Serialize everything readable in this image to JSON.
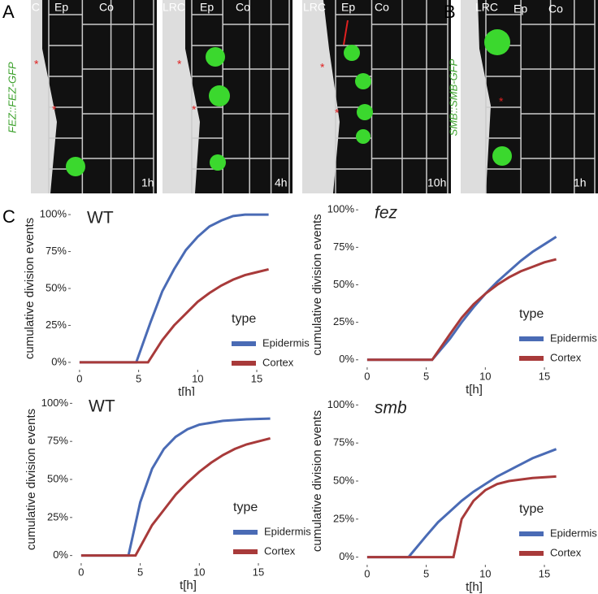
{
  "figure": {
    "panel_labels": [
      "A",
      "B",
      "C"
    ],
    "images": [
      {
        "headers": [
          "LRC",
          "Ep",
          "Co"
        ],
        "time": "1h",
        "markers": [
          "*",
          "*"
        ]
      },
      {
        "headers": [
          "LRC",
          "Ep",
          "Co"
        ],
        "time": "4h",
        "markers": [
          "*",
          "*"
        ]
      },
      {
        "headers": [
          "LRC",
          "Ep",
          "Co"
        ],
        "time": "10h",
        "markers": [
          "*",
          "*"
        ]
      },
      {
        "headers": [
          "LRC",
          "Ep",
          "Co"
        ],
        "time": "1h",
        "markers": [
          "*"
        ]
      }
    ],
    "gene_labels": [
      "FEZ::FEZ-GFP",
      "SMB::SMB-GFP"
    ]
  },
  "chart_data": [
    {
      "type": "line",
      "title": "WT",
      "title_style": "normal",
      "x_label": "t[h]",
      "y_label": "cumulative division events",
      "legend_title": "type",
      "xlim": [
        -0.75,
        18.85
      ],
      "ylim": [
        -5,
        105
      ],
      "xticks": [
        0,
        5,
        10,
        15
      ],
      "yticks": [
        {
          "value": 0,
          "label": "0%"
        },
        {
          "value": 25,
          "label": "25%"
        },
        {
          "value": 50,
          "label": "50%"
        },
        {
          "value": 75,
          "label": "75%"
        },
        {
          "value": 100,
          "label": "100%"
        }
      ],
      "series": [
        {
          "name": "Epidermis",
          "color": "#4a6bb5",
          "x": [
            0,
            4.8,
            6,
            7,
            8,
            9,
            10,
            11,
            12,
            13,
            14,
            16
          ],
          "values": [
            0,
            0,
            27,
            48,
            63,
            76,
            85,
            92,
            96,
            99,
            100,
            100
          ]
        },
        {
          "name": "Cortex",
          "color": "#a83a3a",
          "x": [
            0,
            5.8,
            7,
            8,
            9,
            10,
            11,
            12,
            13,
            14,
            15,
            16
          ],
          "values": [
            0,
            0,
            15,
            25,
            33,
            41,
            47,
            52,
            56,
            59,
            61,
            63
          ]
        }
      ]
    },
    {
      "type": "line",
      "title": "fez",
      "title_style": "italic",
      "x_label": "t[h]",
      "y_label": "cumulative division events",
      "legend_title": "type",
      "xlim": [
        -0.75,
        18.85
      ],
      "ylim": [
        -5,
        105
      ],
      "xticks": [
        0,
        5,
        10,
        15
      ],
      "yticks": [
        {
          "value": 0,
          "label": "0%"
        },
        {
          "value": 25,
          "label": "25%"
        },
        {
          "value": 50,
          "label": "50%"
        },
        {
          "value": 75,
          "label": "75%"
        },
        {
          "value": 100,
          "label": "100%"
        }
      ],
      "series": [
        {
          "name": "Epidermis",
          "color": "#4a6bb5",
          "x": [
            0,
            5.5,
            7,
            8,
            9,
            10,
            11,
            12,
            13,
            14,
            15,
            16
          ],
          "values": [
            0,
            0,
            14,
            25,
            35,
            44,
            52,
            59,
            66,
            72,
            77,
            82
          ]
        },
        {
          "name": "Cortex",
          "color": "#a83a3a",
          "x": [
            0,
            5.5,
            7,
            8,
            9,
            10,
            11,
            12,
            13,
            14,
            15,
            16
          ],
          "values": [
            0,
            0,
            17,
            28,
            37,
            44,
            50,
            55,
            59,
            62,
            65,
            67
          ]
        }
      ]
    },
    {
      "type": "line",
      "title": "WT",
      "title_style": "normal",
      "x_label": "t[h]",
      "y_label": "cumulative division events",
      "legend_title": "type",
      "xlim": [
        -0.75,
        18.85
      ],
      "ylim": [
        -5,
        105
      ],
      "xticks": [
        0,
        5,
        10,
        15
      ],
      "yticks": [
        {
          "value": 0,
          "label": "0%"
        },
        {
          "value": 25,
          "label": "25%"
        },
        {
          "value": 50,
          "label": "50%"
        },
        {
          "value": 75,
          "label": "75%"
        },
        {
          "value": 100,
          "label": "100%"
        }
      ],
      "series": [
        {
          "name": "Epidermis",
          "color": "#4a6bb5",
          "x": [
            0,
            4,
            5,
            6,
            7,
            8,
            9,
            10,
            12,
            14,
            16
          ],
          "values": [
            0,
            0,
            35,
            57,
            70,
            78,
            83,
            86,
            88.5,
            89.5,
            90
          ]
        },
        {
          "name": "Cortex",
          "color": "#a83a3a",
          "x": [
            0,
            4.6,
            6,
            7,
            8,
            9,
            10,
            11,
            12,
            13,
            14,
            15,
            16
          ],
          "values": [
            0,
            0,
            20,
            30,
            40,
            48,
            55,
            61,
            66,
            70,
            73,
            75,
            77
          ]
        }
      ]
    },
    {
      "type": "line",
      "title": "smb",
      "title_style": "italic",
      "x_label": "t[h]",
      "y_label": "cumulative division events",
      "legend_title": "type",
      "xlim": [
        -0.75,
        18.85
      ],
      "ylim": [
        -5,
        105
      ],
      "xticks": [
        0,
        5,
        10,
        15
      ],
      "yticks": [
        {
          "value": 0,
          "label": "0%"
        },
        {
          "value": 25,
          "label": "25%"
        },
        {
          "value": 50,
          "label": "50%"
        },
        {
          "value": 75,
          "label": "75%"
        },
        {
          "value": 100,
          "label": "100%"
        }
      ],
      "series": [
        {
          "name": "Epidermis",
          "color": "#4a6bb5",
          "x": [
            0,
            3.5,
            5,
            6,
            7,
            8,
            9,
            10,
            11,
            12,
            13,
            14,
            15,
            16
          ],
          "values": [
            0,
            0,
            14,
            23,
            30,
            37,
            43,
            48,
            53,
            57,
            61,
            65,
            68,
            71
          ]
        },
        {
          "name": "Cortex",
          "color": "#a83a3a",
          "x": [
            0,
            7.3,
            8,
            9,
            10,
            11,
            12,
            14,
            16
          ],
          "values": [
            0,
            0,
            25,
            37,
            44,
            48,
            50,
            52,
            53
          ]
        }
      ]
    }
  ]
}
